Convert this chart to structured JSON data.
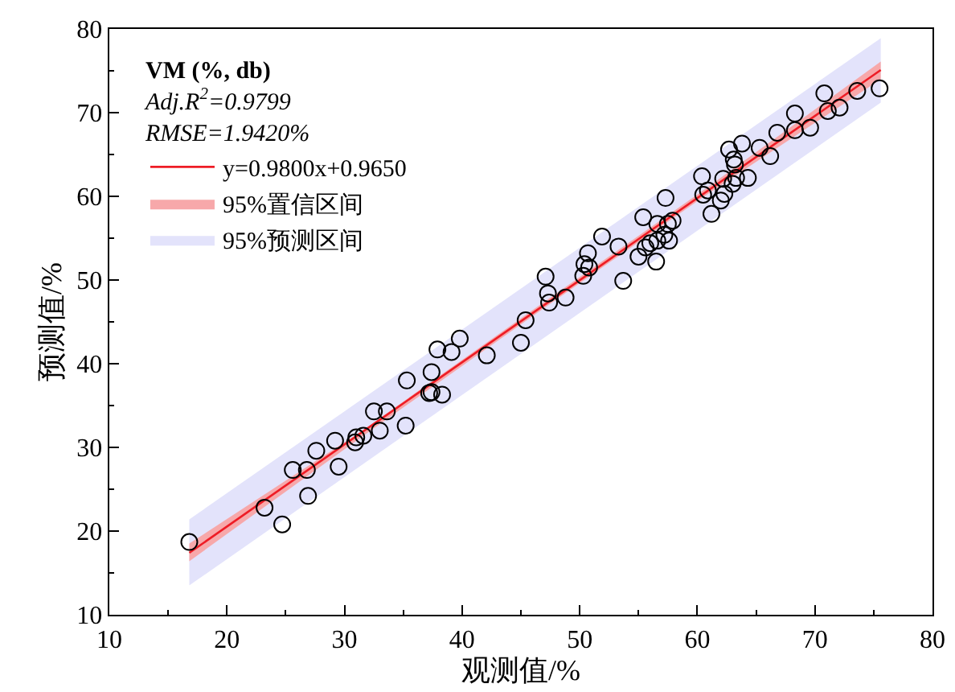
{
  "chart_data": {
    "type": "scatter",
    "legend_title": "VM (%, db)",
    "annotations": [
      "Adj.R$^{2}$=0.9799",
      "RMSE=1.9420%"
    ],
    "xlabel": "观测值/%",
    "ylabel": "预测值/%",
    "xlim": [
      10,
      80
    ],
    "xticks": [
      10,
      20,
      30,
      40,
      50,
      60,
      70,
      80
    ],
    "ylim": [
      10,
      80
    ],
    "yticks": [
      10,
      20,
      30,
      40,
      50,
      60,
      70,
      80
    ],
    "grid": false,
    "legend": "top left",
    "series": [
      {
        "type": "line",
        "name": "95%预测区间",
        "color": "#e3e3fb",
        "marker": "none",
        "x": [
          16.8,
          75.6
        ],
        "values": [
          null,
          null
        ],
        "lower": [
          13.5,
          71.2
        ],
        "upper": [
          21.4,
          78.9
        ]
      },
      {
        "type": "line",
        "name": "95%置信区间",
        "color": "#f7a8aa",
        "marker": "none",
        "x": [
          16.8,
          31.5,
          46.2,
          60.9,
          75.6
        ],
        "values": [
          null,
          null,
          null,
          null,
          null
        ],
        "lower": [
          16.4,
          31.3,
          45.9,
          60.3,
          74.0
        ],
        "upper": [
          18.5,
          32.0,
          46.6,
          61.1,
          76.1
        ]
      },
      {
        "type": "line",
        "name": "y=0.9800x+0.9650",
        "color": "#ee1c25",
        "marker": "none",
        "line_style": "solid",
        "x": [
          16.8,
          75.6
        ],
        "values": [
          17.4,
          75.1
        ]
      },
      {
        "color": "#000000",
        "marker": "circle",
        "x": [
          16.8,
          23.2,
          24.7,
          25.6,
          26.8,
          26.9,
          27.6,
          29.2,
          29.5,
          30.9,
          31.0,
          31.6,
          32.5,
          33.0,
          33.6,
          35.2,
          35.3,
          37.2,
          37.4,
          37.4,
          37.9,
          38.3,
          39.1,
          39.8,
          42.1,
          45.0,
          45.4,
          47.1,
          47.3,
          47.4,
          48.8,
          50.3,
          50.4,
          50.7,
          50.8,
          51.9,
          53.3,
          53.7,
          55.0,
          55.4,
          55.6,
          56.0,
          56.5,
          56.6,
          56.6,
          57.2,
          57.3,
          57.5,
          57.6,
          57.9,
          60.4,
          60.5,
          60.9,
          61.2,
          62.0,
          62.2,
          62.3,
          62.7,
          63.0,
          63.1,
          63.2,
          63.3,
          63.8,
          64.3,
          65.3,
          66.2,
          66.8,
          68.3,
          68.3,
          69.6,
          70.8,
          71.1,
          72.1,
          73.6,
          75.5
        ],
        "values": [
          18.7,
          22.8,
          20.8,
          27.3,
          27.3,
          24.2,
          29.6,
          30.8,
          27.7,
          30.6,
          31.2,
          31.4,
          34.3,
          32.0,
          34.3,
          32.6,
          38.0,
          36.5,
          36.6,
          39.0,
          41.7,
          36.3,
          41.4,
          43.0,
          41.0,
          42.5,
          45.2,
          50.4,
          48.4,
          47.3,
          47.9,
          50.5,
          51.9,
          53.2,
          51.5,
          55.2,
          54.0,
          49.9,
          52.8,
          57.5,
          53.9,
          54.4,
          52.2,
          56.7,
          54.7,
          55.4,
          59.8,
          56.7,
          54.7,
          57.1,
          62.4,
          60.2,
          60.7,
          57.9,
          59.5,
          62.1,
          60.3,
          65.6,
          61.5,
          64.4,
          63.8,
          62.2,
          66.3,
          62.2,
          65.8,
          64.8,
          67.6,
          69.9,
          67.9,
          68.2,
          72.3,
          70.2,
          70.6,
          72.6,
          72.9
        ]
      }
    ]
  }
}
